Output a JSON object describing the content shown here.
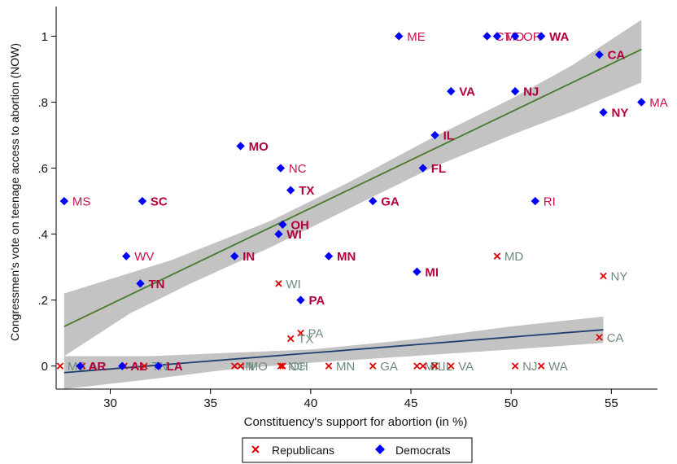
{
  "colors": {
    "democrat_marker": "#0000ff",
    "republican_marker": "#e00000",
    "dem_label_bold": "#b3003b",
    "dem_label_light": "#c8104f",
    "rep_label": "#6e8b7b",
    "dem_fit_line": "#4a7a2a",
    "rep_fit_line": "#1f3e6e",
    "ci_band": "#b8b8b8"
  },
  "chart_data": {
    "type": "scatter",
    "xlabel": "Constituency's support for abortion (in %)",
    "ylabel": "Congressmen's vote on teenage access to abortion (NOW)",
    "xlim": [
      27.3,
      57.3
    ],
    "ylim": [
      -0.07,
      1.09
    ],
    "xticks": [
      {
        "v": 30,
        "label": "30"
      },
      {
        "v": 35,
        "label": "35"
      },
      {
        "v": 40,
        "label": "40"
      },
      {
        "v": 45,
        "label": "45"
      },
      {
        "v": 50,
        "label": "50"
      },
      {
        "v": 55,
        "label": "55"
      }
    ],
    "yticks": [
      {
        "v": 0,
        "label": "0"
      },
      {
        "v": 0.2,
        "label": ".2"
      },
      {
        "v": 0.4,
        "label": ".4"
      },
      {
        "v": 0.6,
        "label": ".6"
      },
      {
        "v": 0.8,
        "label": ".8"
      },
      {
        "v": 1,
        "label": "1"
      }
    ],
    "grid": false,
    "legend": {
      "position": "bottom-center",
      "entries": [
        {
          "label": "Republicans",
          "marker": "x"
        },
        {
          "label": "Democrats",
          "marker": "diamond"
        }
      ]
    },
    "series": [
      {
        "name": "Democrats",
        "marker": "diamond",
        "points": [
          {
            "x": 27.7,
            "y": 0.5,
            "label": "MS",
            "bold": false
          },
          {
            "x": 31.6,
            "y": 0.5,
            "label": "SC",
            "bold": true
          },
          {
            "x": 30.8,
            "y": 0.333,
            "label": "WV",
            "bold": false
          },
          {
            "x": 31.5,
            "y": 0.25,
            "label": "TN",
            "bold": true
          },
          {
            "x": 28.5,
            "y": 0.0,
            "label": "AR",
            "bold": true
          },
          {
            "x": 30.6,
            "y": 0.0,
            "label": "AL",
            "bold": true
          },
          {
            "x": 32.4,
            "y": 0.0,
            "label": "LA",
            "bold": true
          },
          {
            "x": 36.5,
            "y": 0.667,
            "label": "MO",
            "bold": true
          },
          {
            "x": 36.2,
            "y": 0.333,
            "label": "IN",
            "bold": true
          },
          {
            "x": 38.5,
            "y": 0.6,
            "label": "NC",
            "bold": false
          },
          {
            "x": 39.0,
            "y": 0.533,
            "label": "TX",
            "bold": true
          },
          {
            "x": 38.6,
            "y": 0.429,
            "label": "OH",
            "bold": true
          },
          {
            "x": 38.4,
            "y": 0.4,
            "label": "WI",
            "bold": true
          },
          {
            "x": 39.5,
            "y": 0.2,
            "label": "PA",
            "bold": true
          },
          {
            "x": 40.9,
            "y": 0.333,
            "label": "MN",
            "bold": true
          },
          {
            "x": 43.1,
            "y": 0.5,
            "label": "GA",
            "bold": true
          },
          {
            "x": 44.4,
            "y": 1.0,
            "label": "ME",
            "bold": false
          },
          {
            "x": 45.3,
            "y": 0.286,
            "label": "MI",
            "bold": true
          },
          {
            "x": 45.6,
            "y": 0.6,
            "label": "FL",
            "bold": true
          },
          {
            "x": 46.2,
            "y": 0.7,
            "label": "IL",
            "bold": true
          },
          {
            "x": 47.0,
            "y": 0.833,
            "label": "VA",
            "bold": true
          },
          {
            "x": 48.8,
            "y": 1.0,
            "label": "CT",
            "bold": false
          },
          {
            "x": 49.3,
            "y": 1.0,
            "label": "MD",
            "bold": false
          },
          {
            "x": 50.2,
            "y": 1.0,
            "label": "OR",
            "bold": false
          },
          {
            "x": 51.5,
            "y": 1.0,
            "label": "WA",
            "bold": true
          },
          {
            "x": 50.2,
            "y": 0.833,
            "label": "NJ",
            "bold": true
          },
          {
            "x": 51.2,
            "y": 0.5,
            "label": "RI",
            "bold": false
          },
          {
            "x": 54.4,
            "y": 0.944,
            "label": "CA",
            "bold": true
          },
          {
            "x": 54.6,
            "y": 0.769,
            "label": "NY",
            "bold": true
          },
          {
            "x": 56.5,
            "y": 0.8,
            "label": "MA",
            "bold": false
          }
        ]
      },
      {
        "name": "Republicans",
        "marker": "x",
        "points": [
          {
            "x": 27.5,
            "y": 0.0,
            "label": "MS"
          },
          {
            "x": 28.6,
            "y": 0.0,
            "label": "AR"
          },
          {
            "x": 30.7,
            "y": 0.0,
            "label": "AL"
          },
          {
            "x": 31.7,
            "y": 0.0,
            "label": "TN"
          },
          {
            "x": 36.2,
            "y": 0.0,
            "label": "IN"
          },
          {
            "x": 36.5,
            "y": 0.0,
            "label": "MO"
          },
          {
            "x": 38.5,
            "y": 0.0,
            "label": "NC"
          },
          {
            "x": 38.6,
            "y": 0.0,
            "label": "OH"
          },
          {
            "x": 38.4,
            "y": 0.25,
            "label": "WI"
          },
          {
            "x": 39.5,
            "y": 0.1,
            "label": "PA"
          },
          {
            "x": 39.0,
            "y": 0.083,
            "label": "TX"
          },
          {
            "x": 40.9,
            "y": 0.0,
            "label": "MN"
          },
          {
            "x": 43.1,
            "y": 0.0,
            "label": "GA"
          },
          {
            "x": 45.3,
            "y": 0.0,
            "label": "MI"
          },
          {
            "x": 45.6,
            "y": 0.0,
            "label": "FL"
          },
          {
            "x": 46.2,
            "y": 0.0,
            "label": "IL"
          },
          {
            "x": 47.0,
            "y": 0.0,
            "label": "VA"
          },
          {
            "x": 49.3,
            "y": 0.333,
            "label": "MD"
          },
          {
            "x": 50.2,
            "y": 0.0,
            "label": "NJ"
          },
          {
            "x": 51.5,
            "y": 0.0,
            "label": "WA"
          },
          {
            "x": 54.4,
            "y": 0.087,
            "label": "CA"
          },
          {
            "x": 54.6,
            "y": 0.273,
            "label": "NY"
          }
        ]
      }
    ],
    "fits": [
      {
        "name": "Democrats",
        "line": [
          {
            "x": 27.7,
            "y": 0.12
          },
          {
            "x": 56.5,
            "y": 0.96
          }
        ],
        "ci_upper": [
          {
            "x": 27.7,
            "y": 0.22
          },
          {
            "x": 33,
            "y": 0.32
          },
          {
            "x": 38,
            "y": 0.44
          },
          {
            "x": 42,
            "y": 0.56
          },
          {
            "x": 46,
            "y": 0.69
          },
          {
            "x": 50,
            "y": 0.81
          },
          {
            "x": 53,
            "y": 0.91
          },
          {
            "x": 56.5,
            "y": 1.05
          }
        ],
        "ci_lower": [
          {
            "x": 27.7,
            "y": 0.03
          },
          {
            "x": 31,
            "y": 0.16
          },
          {
            "x": 34,
            "y": 0.25
          },
          {
            "x": 38,
            "y": 0.36
          },
          {
            "x": 42,
            "y": 0.48
          },
          {
            "x": 46,
            "y": 0.6
          },
          {
            "x": 50,
            "y": 0.7
          },
          {
            "x": 53,
            "y": 0.77
          },
          {
            "x": 56.5,
            "y": 0.86
          }
        ]
      },
      {
        "name": "Republicans",
        "line": [
          {
            "x": 27.7,
            "y": -0.02
          },
          {
            "x": 54.6,
            "y": 0.11
          }
        ],
        "ci_upper": [
          {
            "x": 27.7,
            "y": 0.03
          },
          {
            "x": 32,
            "y": 0.03
          },
          {
            "x": 36,
            "y": 0.04
          },
          {
            "x": 40,
            "y": 0.05
          },
          {
            "x": 45,
            "y": 0.08
          },
          {
            "x": 50,
            "y": 0.12
          },
          {
            "x": 54.6,
            "y": 0.15
          }
        ],
        "ci_lower": [
          {
            "x": 27.7,
            "y": -0.07
          },
          {
            "x": 32,
            "y": -0.04
          },
          {
            "x": 36,
            "y": -0.01
          },
          {
            "x": 40,
            "y": 0.01
          },
          {
            "x": 45,
            "y": 0.03
          },
          {
            "x": 50,
            "y": 0.05
          },
          {
            "x": 54.6,
            "y": 0.07
          }
        ]
      }
    ]
  }
}
